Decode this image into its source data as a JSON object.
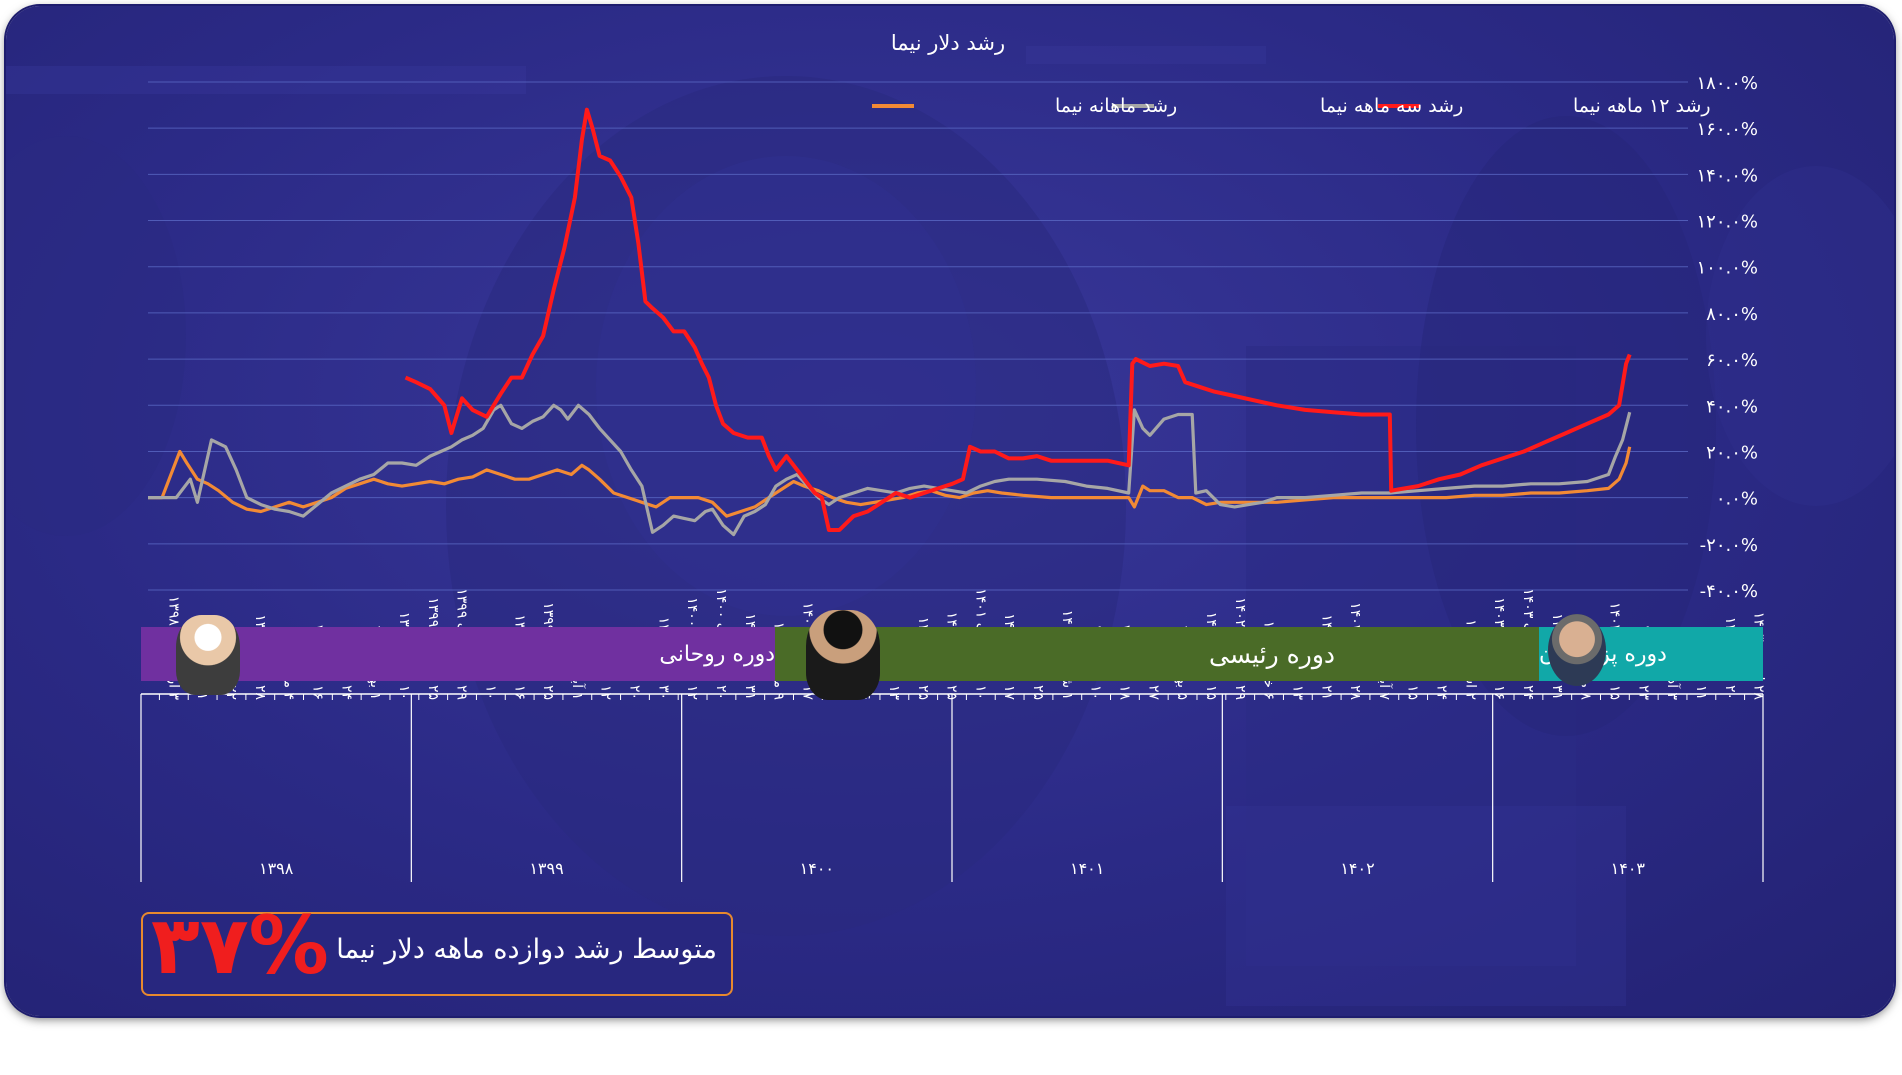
{
  "chart_data": {
    "type": "line",
    "title": "رشد دلار نیما",
    "ylim": [
      -40,
      180
    ],
    "y_ticks": [
      -40,
      -20,
      0,
      20,
      40,
      60,
      80,
      100,
      120,
      140,
      160,
      180
    ],
    "y_tick_labels": [
      "-۴۰.۰%",
      "-۲۰.۰%",
      "۰.۰%",
      "۲۰.۰%",
      "۴۰.۰%",
      "۶۰.۰%",
      "۸۰.۰%",
      "۱۰۰.۰%",
      "۱۲۰.۰%",
      "۱۴۰.۰%",
      "۱۶۰.۰%",
      "۱۸۰.۰%"
    ],
    "grid": true,
    "legend_position": "top-center",
    "x_range_days": [
      0,
      2160
    ],
    "series": [
      {
        "name": "رشد ۱۲ ماهه نیما",
        "color": "#ff1a1a",
        "points": [
          [
            365,
            52
          ],
          [
            380,
            50
          ],
          [
            400,
            47
          ],
          [
            420,
            40
          ],
          [
            430,
            28
          ],
          [
            445,
            43
          ],
          [
            460,
            38
          ],
          [
            480,
            35
          ],
          [
            500,
            45
          ],
          [
            515,
            52
          ],
          [
            530,
            52
          ],
          [
            545,
            62
          ],
          [
            560,
            70
          ],
          [
            575,
            90
          ],
          [
            590,
            108
          ],
          [
            605,
            130
          ],
          [
            615,
            155
          ],
          [
            622,
            168
          ],
          [
            630,
            160
          ],
          [
            640,
            148
          ],
          [
            655,
            146
          ],
          [
            670,
            139
          ],
          [
            685,
            130
          ],
          [
            695,
            110
          ],
          [
            705,
            85
          ],
          [
            715,
            82
          ],
          [
            730,
            78
          ],
          [
            745,
            72
          ],
          [
            760,
            72
          ],
          [
            775,
            65
          ],
          [
            785,
            58
          ],
          [
            795,
            52
          ],
          [
            805,
            40
          ],
          [
            815,
            32
          ],
          [
            830,
            28
          ],
          [
            850,
            26
          ],
          [
            870,
            26
          ],
          [
            880,
            18
          ],
          [
            890,
            12
          ],
          [
            905,
            18
          ],
          [
            920,
            12
          ],
          [
            930,
            8
          ],
          [
            945,
            2
          ],
          [
            955,
            0
          ],
          [
            965,
            -14
          ],
          [
            980,
            -14
          ],
          [
            1000,
            -8
          ],
          [
            1020,
            -6
          ],
          [
            1040,
            -2
          ],
          [
            1060,
            2
          ],
          [
            1080,
            0
          ],
          [
            1100,
            2
          ],
          [
            1120,
            4
          ],
          [
            1140,
            6
          ],
          [
            1155,
            8
          ],
          [
            1165,
            22
          ],
          [
            1180,
            20
          ],
          [
            1200,
            20
          ],
          [
            1220,
            17
          ],
          [
            1240,
            17
          ],
          [
            1260,
            18
          ],
          [
            1280,
            16
          ],
          [
            1300,
            16
          ],
          [
            1330,
            16
          ],
          [
            1360,
            16
          ],
          [
            1390,
            14
          ],
          [
            1395,
            58
          ],
          [
            1400,
            60
          ],
          [
            1420,
            57
          ],
          [
            1440,
            58
          ],
          [
            1460,
            57
          ],
          [
            1470,
            50
          ],
          [
            1490,
            48
          ],
          [
            1510,
            46
          ],
          [
            1540,
            44
          ],
          [
            1570,
            42
          ],
          [
            1600,
            40
          ],
          [
            1640,
            38
          ],
          [
            1680,
            37
          ],
          [
            1720,
            36
          ],
          [
            1760,
            36
          ],
          [
            1762,
            3
          ],
          [
            1800,
            5
          ],
          [
            1830,
            8
          ],
          [
            1860,
            10
          ],
          [
            1890,
            14
          ],
          [
            1920,
            17
          ],
          [
            1950,
            20
          ],
          [
            1980,
            24
          ],
          [
            2010,
            28
          ],
          [
            2040,
            32
          ],
          [
            2070,
            36
          ],
          [
            2085,
            40
          ],
          [
            2095,
            58
          ],
          [
            2100,
            62
          ]
        ]
      },
      {
        "name": "رشد سه ماهه نیما",
        "color": "#a6a6a6",
        "points": [
          [
            0,
            0
          ],
          [
            40,
            0
          ],
          [
            60,
            8
          ],
          [
            70,
            -2
          ],
          [
            90,
            25
          ],
          [
            110,
            22
          ],
          [
            125,
            12
          ],
          [
            140,
            0
          ],
          [
            160,
            -3
          ],
          [
            180,
            -5
          ],
          [
            200,
            -6
          ],
          [
            220,
            -8
          ],
          [
            240,
            -3
          ],
          [
            260,
            2
          ],
          [
            280,
            5
          ],
          [
            300,
            8
          ],
          [
            320,
            10
          ],
          [
            340,
            15
          ],
          [
            360,
            15
          ],
          [
            380,
            14
          ],
          [
            400,
            18
          ],
          [
            415,
            20
          ],
          [
            430,
            22
          ],
          [
            445,
            25
          ],
          [
            460,
            27
          ],
          [
            475,
            30
          ],
          [
            490,
            38
          ],
          [
            500,
            40
          ],
          [
            515,
            32
          ],
          [
            530,
            30
          ],
          [
            545,
            33
          ],
          [
            560,
            35
          ],
          [
            575,
            40
          ],
          [
            585,
            38
          ],
          [
            595,
            34
          ],
          [
            610,
            40
          ],
          [
            625,
            36
          ],
          [
            640,
            30
          ],
          [
            655,
            25
          ],
          [
            670,
            20
          ],
          [
            685,
            12
          ],
          [
            700,
            5
          ],
          [
            715,
            -15
          ],
          [
            730,
            -12
          ],
          [
            745,
            -8
          ],
          [
            760,
            -9
          ],
          [
            775,
            -10
          ],
          [
            790,
            -6
          ],
          [
            800,
            -5
          ],
          [
            815,
            -12
          ],
          [
            830,
            -16
          ],
          [
            845,
            -8
          ],
          [
            860,
            -6
          ],
          [
            875,
            -3
          ],
          [
            890,
            5
          ],
          [
            905,
            8
          ],
          [
            920,
            10
          ],
          [
            935,
            5
          ],
          [
            950,
            0
          ],
          [
            965,
            -3
          ],
          [
            980,
            0
          ],
          [
            1000,
            2
          ],
          [
            1020,
            4
          ],
          [
            1040,
            3
          ],
          [
            1060,
            2
          ],
          [
            1080,
            4
          ],
          [
            1100,
            5
          ],
          [
            1120,
            4
          ],
          [
            1140,
            3
          ],
          [
            1160,
            2
          ],
          [
            1180,
            5
          ],
          [
            1200,
            7
          ],
          [
            1220,
            8
          ],
          [
            1260,
            8
          ],
          [
            1300,
            7
          ],
          [
            1330,
            5
          ],
          [
            1360,
            4
          ],
          [
            1390,
            2
          ],
          [
            1398,
            38
          ],
          [
            1410,
            30
          ],
          [
            1420,
            27
          ],
          [
            1440,
            34
          ],
          [
            1460,
            36
          ],
          [
            1480,
            36
          ],
          [
            1485,
            2
          ],
          [
            1500,
            3
          ],
          [
            1520,
            -3
          ],
          [
            1540,
            -4
          ],
          [
            1560,
            -3
          ],
          [
            1580,
            -2
          ],
          [
            1600,
            0
          ],
          [
            1640,
            0
          ],
          [
            1680,
            1
          ],
          [
            1720,
            2
          ],
          [
            1760,
            2
          ],
          [
            1800,
            3
          ],
          [
            1840,
            4
          ],
          [
            1880,
            5
          ],
          [
            1920,
            5
          ],
          [
            1960,
            6
          ],
          [
            2000,
            6
          ],
          [
            2040,
            7
          ],
          [
            2070,
            10
          ],
          [
            2080,
            18
          ],
          [
            2090,
            25
          ],
          [
            2100,
            37
          ]
        ]
      },
      {
        "name": "رشد ماهانه نیما",
        "color": "#f28a35",
        "points": [
          [
            0,
            0
          ],
          [
            20,
            0
          ],
          [
            35,
            12
          ],
          [
            45,
            20
          ],
          [
            55,
            15
          ],
          [
            70,
            8
          ],
          [
            85,
            6
          ],
          [
            100,
            3
          ],
          [
            120,
            -2
          ],
          [
            140,
            -5
          ],
          [
            160,
            -6
          ],
          [
            180,
            -4
          ],
          [
            200,
            -2
          ],
          [
            220,
            -4
          ],
          [
            240,
            -2
          ],
          [
            260,
            0
          ],
          [
            280,
            4
          ],
          [
            300,
            6
          ],
          [
            320,
            8
          ],
          [
            340,
            6
          ],
          [
            360,
            5
          ],
          [
            380,
            6
          ],
          [
            400,
            7
          ],
          [
            420,
            6
          ],
          [
            440,
            8
          ],
          [
            460,
            9
          ],
          [
            480,
            12
          ],
          [
            500,
            10
          ],
          [
            520,
            8
          ],
          [
            540,
            8
          ],
          [
            560,
            10
          ],
          [
            580,
            12
          ],
          [
            600,
            10
          ],
          [
            615,
            14
          ],
          [
            625,
            12
          ],
          [
            640,
            8
          ],
          [
            660,
            2
          ],
          [
            680,
            0
          ],
          [
            700,
            -2
          ],
          [
            720,
            -4
          ],
          [
            740,
            0
          ],
          [
            760,
            0
          ],
          [
            780,
            0
          ],
          [
            800,
            -2
          ],
          [
            820,
            -8
          ],
          [
            840,
            -6
          ],
          [
            860,
            -4
          ],
          [
            880,
            0
          ],
          [
            900,
            4
          ],
          [
            915,
            7
          ],
          [
            930,
            5
          ],
          [
            950,
            3
          ],
          [
            970,
            0
          ],
          [
            990,
            -2
          ],
          [
            1010,
            -3
          ],
          [
            1030,
            -2
          ],
          [
            1050,
            -1
          ],
          [
            1070,
            0
          ],
          [
            1090,
            2
          ],
          [
            1110,
            3
          ],
          [
            1130,
            1
          ],
          [
            1150,
            0
          ],
          [
            1170,
            2
          ],
          [
            1190,
            3
          ],
          [
            1210,
            2
          ],
          [
            1240,
            1
          ],
          [
            1280,
            0
          ],
          [
            1320,
            0
          ],
          [
            1360,
            0
          ],
          [
            1390,
            0
          ],
          [
            1398,
            -4
          ],
          [
            1410,
            5
          ],
          [
            1420,
            3
          ],
          [
            1440,
            3
          ],
          [
            1460,
            0
          ],
          [
            1480,
            0
          ],
          [
            1500,
            -3
          ],
          [
            1520,
            -2
          ],
          [
            1560,
            -2
          ],
          [
            1600,
            -2
          ],
          [
            1640,
            -1
          ],
          [
            1680,
            0
          ],
          [
            1720,
            0
          ],
          [
            1760,
            0
          ],
          [
            1800,
            0
          ],
          [
            1840,
            0
          ],
          [
            1880,
            1
          ],
          [
            1920,
            1
          ],
          [
            1960,
            2
          ],
          [
            2000,
            2
          ],
          [
            2040,
            3
          ],
          [
            2070,
            4
          ],
          [
            2085,
            8
          ],
          [
            2095,
            15
          ],
          [
            2100,
            22
          ]
        ]
      }
    ],
    "x_tick_labels": [
      "۳ اردیبهشت ۱۳۹۸",
      "۱۱ خرداد ۱۳۹۸",
      "۲۲ تیر ۱۳۹۸",
      "۲۸ مرداد ۱۳۹۸",
      "۴ مهر ۱۳۹۸",
      "۱۶ آبان ۱۳۹۸",
      "۲۴ آذر ۱۳۹۸",
      "۱ بهمن ۱۳۹۸",
      "۱۰ اسفند ۱۳۹۸",
      "۲۵ فروردین ۱۳۹۹",
      "۲۹ اردیبهشت ۱۳۹۹",
      "۱۰ تیر ۱۳۹۹",
      "۱۶ مرداد ۱۳۹۹",
      "۲۵ شهریور ۱۳۹۹",
      "۱ آبان ۱۳۹۹",
      "۱۲ آذر ۱۳۹۹",
      "۲۰ دی ۱۳۹۹",
      "۳۰ بهمن ۱۳۹۹",
      "۱۲ فروردین ۱۴۰۰",
      "۲۰ اردیبهشت ۱۴۰۰",
      "۳۱ خرداد ۱۴۰۰",
      "۹ مرداد ۱۴۰۰",
      "۱۷ شهریور ۱۴۰۰",
      "۲۷ مهر ۱۴۰۰",
      "۶ آذر ۱۴۰۰",
      "۱۳ دی ۱۴۰۰",
      "۲۵ بهمن ۱۴۰۰",
      "۲۵ اسفند ۱۴۰۰",
      "۱۰ اردیبهشت ۱۴۰۱",
      "۱۷ خرداد ۱۴۰۱",
      "۲۵ تیر ۱۴۰۱",
      "۱ شهریور ۱۴۰۱",
      "۱۰ مهر ۱۴۰۱",
      "۱۸ آبان ۱۴۰۱",
      "۲۷ آذر ۱۴۰۱",
      "۵ بهمن ۱۴۰۱",
      "۱۵ اسفند ۱۴۰۱",
      "۲۹ فروردین ۱۴۰۲",
      "۶ خرداد ۱۴۰۲",
      "۱۳ تیر ۱۴۰۲",
      "۲۱ مرداد ۱۴۰۲",
      "۲۸ شهریور ۱۴۰۲",
      "۷ آبان ۱۴۰۲",
      "۱۵ آذر ۱۴۰۲",
      "۲۴ دی ۱۴۰۲",
      "۲ اسفند ۱۴۰۲",
      "۱۶ فروردین ۱۴۰۳",
      "۲۴ اردیبهشت ۱۴۰۳",
      "۳۱ خرداد ۱۴۰۳",
      "۸ مرداد ۱۴۰۳",
      "۱۵ شهریور ۱۴۰۳",
      "۲۳ مهر ۱۴۰۳",
      "۳ آذر ۱۴۰۳",
      "۱۱ دی ۱۴۰۳",
      "۲۰ بهمن ۱۴۰۳",
      "۲۸ اسفند ۱۴۰۳"
    ],
    "year_labels": [
      "۱۳۹۸",
      "۱۳۹۹",
      "۱۴۰۰",
      "۱۴۰۱",
      "۱۴۰۲",
      "۱۴۰۳"
    ]
  },
  "periods": [
    {
      "label": "دوره روحانی",
      "color": "#7030a0",
      "portrait": "rouhani-portrait"
    },
    {
      "label": "دوره رئیسی",
      "color": "#4a6b27",
      "portrait": "raisi-portrait"
    },
    {
      "label": "دوره پزشکیان",
      "color": "#11a8a8",
      "portrait": "pezeshkian-portrait"
    }
  ],
  "summary": {
    "label": "متوسط رشد دوازده ماهه دلار نیما",
    "value": "۳۷%"
  }
}
